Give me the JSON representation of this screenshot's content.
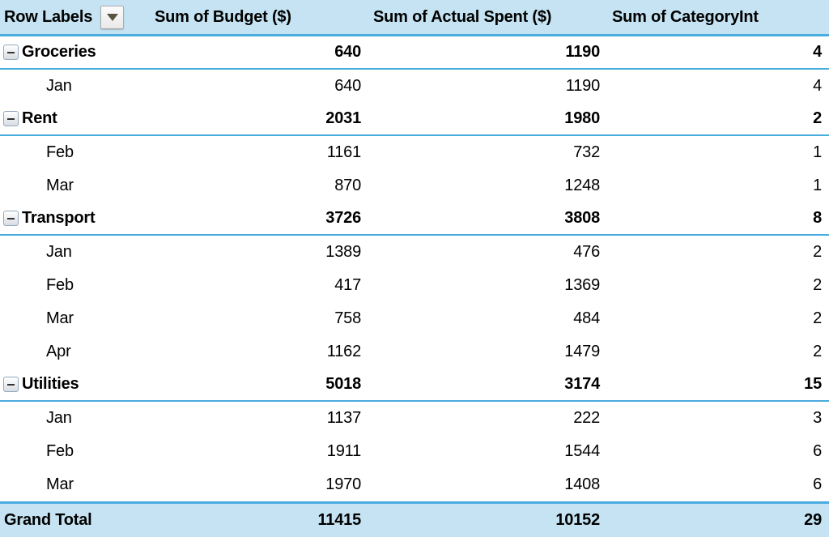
{
  "table": {
    "header": {
      "row_labels": "Row Labels",
      "budget": "Sum of Budget ($)",
      "actual": "Sum of Actual Spent ($)",
      "category": "Sum of CategoryInt"
    },
    "rows": [
      {
        "type": "group",
        "label": "Groceries",
        "budget": "640",
        "actual": "1190",
        "cat": "4"
      },
      {
        "type": "detail",
        "label": "Jan",
        "budget": "640",
        "actual": "1190",
        "cat": "4"
      },
      {
        "type": "group",
        "label": "Rent",
        "budget": "2031",
        "actual": "1980",
        "cat": "2"
      },
      {
        "type": "detail",
        "label": "Feb",
        "budget": "1161",
        "actual": "732",
        "cat": "1"
      },
      {
        "type": "detail",
        "label": "Mar",
        "budget": "870",
        "actual": "1248",
        "cat": "1"
      },
      {
        "type": "group",
        "label": "Transport",
        "budget": "3726",
        "actual": "3808",
        "cat": "8"
      },
      {
        "type": "detail",
        "label": "Jan",
        "budget": "1389",
        "actual": "476",
        "cat": "2"
      },
      {
        "type": "detail",
        "label": "Feb",
        "budget": "417",
        "actual": "1369",
        "cat": "2"
      },
      {
        "type": "detail",
        "label": "Mar",
        "budget": "758",
        "actual": "484",
        "cat": "2"
      },
      {
        "type": "detail",
        "label": "Apr",
        "budget": "1162",
        "actual": "1479",
        "cat": "2"
      },
      {
        "type": "group",
        "label": "Utilities",
        "budget": "5018",
        "actual": "3174",
        "cat": "15"
      },
      {
        "type": "detail",
        "label": "Jan",
        "budget": "1137",
        "actual": "222",
        "cat": "3"
      },
      {
        "type": "detail",
        "label": "Feb",
        "budget": "1911",
        "actual": "1544",
        "cat": "6"
      },
      {
        "type": "detail",
        "label": "Mar",
        "budget": "1970",
        "actual": "1408",
        "cat": "6"
      },
      {
        "type": "grand",
        "label": "Grand Total",
        "budget": "11415",
        "actual": "10152",
        "cat": "29"
      }
    ]
  },
  "icons": {
    "filter_dropdown": "filter-dropdown-arrow",
    "collapse": "collapse-minus"
  },
  "colors": {
    "header_fill": "#C5E3F2",
    "grand_total_fill": "#C5E3F2",
    "accent_border": "#49ACDF"
  }
}
